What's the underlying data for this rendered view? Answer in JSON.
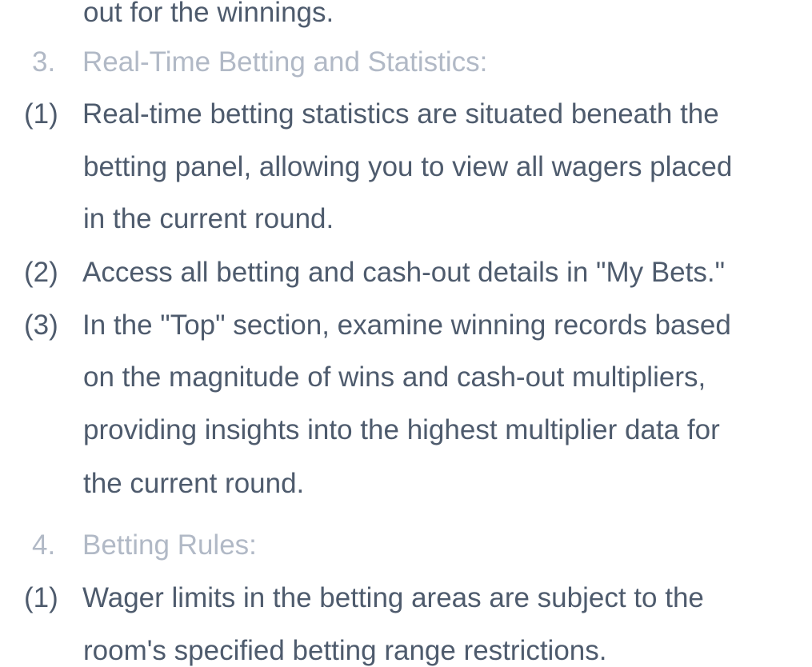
{
  "rules_text": {
    "lead_continuation": "out for the winnings.",
    "section_3": {
      "number": "3.",
      "title": "Real-Time Betting and Statistics:",
      "items": [
        {
          "marker": "(1)",
          "lines": [
            "Real-time betting statistics are situated beneath the",
            "betting panel, allowing you to view all wagers placed",
            "in the current round."
          ]
        },
        {
          "marker": "(2)",
          "lines": [
            "Access all betting and cash-out details in \"My Bets.\""
          ]
        },
        {
          "marker": "(3)",
          "lines": [
            "In the \"Top\" section, examine winning records based",
            "on the magnitude of wins and cash-out multipliers,",
            "providing insights into the highest multiplier data for",
            "the current round."
          ]
        }
      ]
    },
    "section_4": {
      "number": "4.",
      "title": "Betting Rules:",
      "items": [
        {
          "marker": "(1)",
          "lines": [
            "Wager limits in the betting areas are subject to the",
            "room's specified betting range restrictions."
          ]
        }
      ]
    }
  }
}
